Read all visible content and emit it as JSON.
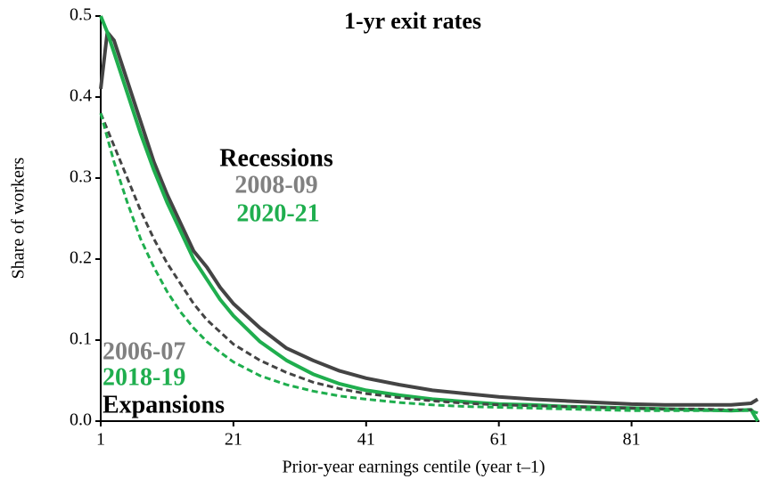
{
  "chart_data": {
    "type": "line",
    "title": "1-yr exit rates",
    "xlabel": "Prior-year earnings centile (year t–1)",
    "ylabel": "Share of  workers",
    "xlim": [
      1,
      100
    ],
    "ylim": [
      0,
      0.5
    ],
    "xticks": [
      1,
      21,
      41,
      61,
      81
    ],
    "yticks": [
      {
        "value": 0,
        "label": "0.0"
      },
      0.1,
      0.2,
      0.3,
      0.4,
      0.5
    ],
    "x": [
      1,
      2,
      3,
      5,
      7,
      9,
      11,
      13,
      15,
      17,
      19,
      21,
      25,
      29,
      33,
      37,
      41,
      46,
      51,
      56,
      61,
      66,
      71,
      76,
      81,
      86,
      91,
      96,
      99,
      100
    ],
    "series": [
      {
        "name": "2008-09",
        "color": "#444444",
        "label_color": "#808080",
        "dashed": false,
        "values": [
          0.41,
          0.48,
          0.47,
          0.42,
          0.37,
          0.32,
          0.28,
          0.245,
          0.21,
          0.19,
          0.165,
          0.145,
          0.115,
          0.09,
          0.075,
          0.062,
          0.053,
          0.045,
          0.038,
          0.034,
          0.03,
          0.027,
          0.025,
          0.023,
          0.021,
          0.02,
          0.02,
          0.02,
          0.022,
          0.027
        ]
      },
      {
        "name": "2020-21",
        "color": "#1fae4e",
        "label_color": "#1fae4e",
        "dashed": false,
        "values": [
          0.5,
          0.48,
          0.455,
          0.405,
          0.355,
          0.31,
          0.27,
          0.235,
          0.2,
          0.175,
          0.15,
          0.13,
          0.098,
          0.075,
          0.058,
          0.046,
          0.038,
          0.032,
          0.027,
          0.024,
          0.021,
          0.02,
          0.018,
          0.017,
          0.016,
          0.015,
          0.014,
          0.013,
          0.014,
          0
        ]
      },
      {
        "name": "2006-07",
        "color": "#444444",
        "label_color": "#808080",
        "dashed": true,
        "values": [
          0.38,
          0.36,
          0.34,
          0.3,
          0.26,
          0.225,
          0.195,
          0.17,
          0.145,
          0.125,
          0.11,
          0.095,
          0.075,
          0.06,
          0.048,
          0.04,
          0.034,
          0.029,
          0.025,
          0.022,
          0.02,
          0.019,
          0.018,
          0.017,
          0.016,
          0.015,
          0.015,
          0.014,
          0.014,
          0.01
        ]
      },
      {
        "name": "2018-19",
        "color": "#1fae4e",
        "label_color": "#1fae4e",
        "dashed": true,
        "values": [
          0.38,
          0.35,
          0.32,
          0.27,
          0.225,
          0.19,
          0.16,
          0.135,
          0.115,
          0.098,
          0.085,
          0.073,
          0.056,
          0.045,
          0.037,
          0.031,
          0.027,
          0.023,
          0.02,
          0.018,
          0.017,
          0.016,
          0.015,
          0.014,
          0.013,
          0.013,
          0.013,
          0.013,
          0.013,
          0.01
        ]
      }
    ],
    "annotations": [
      "Recessions",
      "Expansions"
    ]
  }
}
